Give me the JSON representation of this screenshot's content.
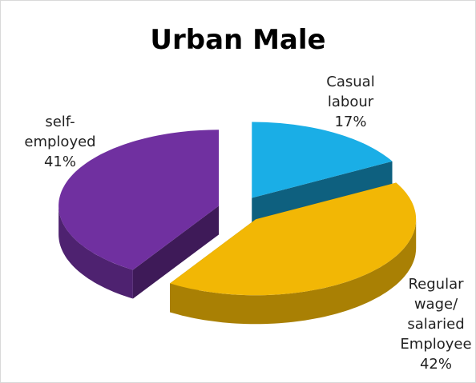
{
  "chart_data": {
    "type": "pie3d",
    "title": "Urban Male",
    "categories": [
      "Casual labour",
      "Regular wage/ salaried Employee",
      "self-employed"
    ],
    "values": [
      17,
      42,
      41
    ],
    "value_labels": [
      "17%",
      "42%",
      "41%"
    ],
    "colors": [
      "#1aaee6",
      "#f2b705",
      "#7030a0"
    ]
  }
}
